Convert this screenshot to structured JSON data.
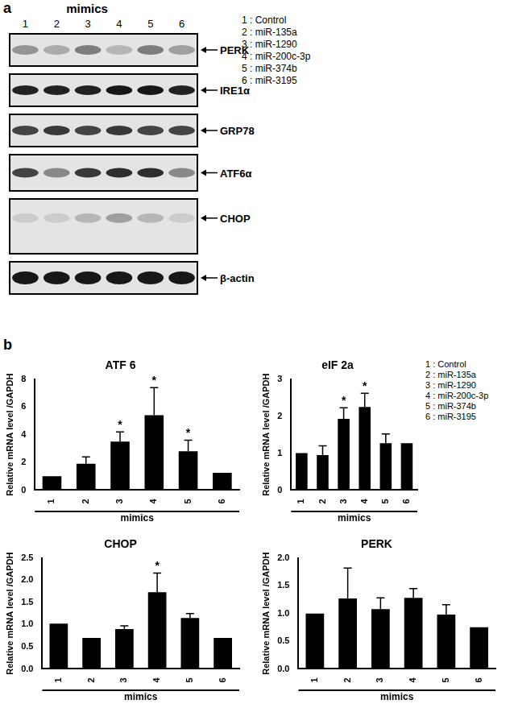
{
  "panel_a": {
    "label": "a",
    "header": "mimics",
    "lanes": [
      "1",
      "2",
      "3",
      "4",
      "5",
      "6"
    ],
    "key": [
      "1 : Control",
      "2 : miR-135a",
      "3 : miR-1290",
      "4 : miR-200c-3p",
      "5 : miR-374b",
      "6 : miR-3195"
    ],
    "rows": [
      {
        "label": "PERK",
        "intensity": [
          0.35,
          0.25,
          0.45,
          0.2,
          0.45,
          0.3
        ]
      },
      {
        "label": "IRE1α",
        "intensity": [
          0.85,
          0.85,
          0.85,
          0.9,
          0.9,
          0.85
        ]
      },
      {
        "label": "GRP78",
        "intensity": [
          0.7,
          0.75,
          0.7,
          0.75,
          0.7,
          0.7
        ]
      },
      {
        "label": "ATF6α",
        "intensity": [
          0.7,
          0.4,
          0.75,
          0.8,
          0.8,
          0.4
        ]
      },
      {
        "label": "CHOP",
        "intensity": [
          0.1,
          0.1,
          0.2,
          0.3,
          0.2,
          0.1
        ]
      },
      {
        "label": "β-actin",
        "intensity": [
          0.9,
          0.9,
          0.9,
          0.9,
          0.9,
          0.9
        ]
      }
    ]
  },
  "panel_b": {
    "label": "b",
    "key": [
      "1 : Control",
      "2 : miR-135a",
      "3 : miR-1290",
      "4 : miR-200c-3p",
      "5 : miR-374b",
      "6 : miR-3195"
    ]
  },
  "chart_data": [
    {
      "type": "bar",
      "title": "ATF 6",
      "x_label": "mimics",
      "y_label": "Relative mRNA level /GAPDH",
      "categories": [
        "1",
        "2",
        "3",
        "4",
        "5",
        "6"
      ],
      "values": [
        1.0,
        1.9,
        3.5,
        5.4,
        2.8,
        1.25
      ],
      "errors": [
        0,
        0.5,
        0.7,
        2.0,
        0.8,
        0
      ],
      "significance": [
        null,
        null,
        "*",
        "*",
        "*",
        null
      ],
      "color": "#000000",
      "ylim": [
        0,
        8
      ],
      "yticks": [
        0,
        2,
        4,
        6,
        8
      ],
      "grid": false
    },
    {
      "type": "bar",
      "title": "eIF 2a",
      "x_label": "mimics",
      "y_label": "Relative mRNA level /GAPDH",
      "categories": [
        "1",
        "2",
        "3",
        "4",
        "5",
        "6"
      ],
      "values": [
        1.0,
        0.95,
        1.93,
        2.25,
        1.27,
        1.27
      ],
      "errors": [
        0,
        0.25,
        0.3,
        0.37,
        0.25,
        0
      ],
      "significance": [
        null,
        null,
        "*",
        "*",
        null,
        null
      ],
      "color": "#000000",
      "ylim": [
        0,
        3
      ],
      "yticks": [
        0,
        1,
        2,
        3
      ],
      "grid": false
    },
    {
      "type": "bar",
      "title": "CHOP",
      "x_label": "mimics",
      "y_label": "Relative mRNA level /GAPDH",
      "categories": [
        "1",
        "2",
        "3",
        "4",
        "5",
        "6"
      ],
      "values": [
        1.02,
        0.7,
        0.9,
        1.73,
        1.15,
        0.7
      ],
      "errors": [
        0,
        0,
        0.07,
        0.43,
        0.1,
        0
      ],
      "significance": [
        null,
        null,
        null,
        "*",
        null,
        null
      ],
      "color": "#000000",
      "ylim": [
        0,
        2.5
      ],
      "yticks": [
        {
          "value": 0,
          "label": "0.0"
        },
        {
          "value": 0.5,
          "label": "0.5"
        },
        {
          "value": 1,
          "label": "1.0"
        },
        {
          "value": 1.5,
          "label": "1.5"
        },
        {
          "value": 2,
          "label": "2.0"
        },
        {
          "value": 2.5,
          "label": "2.5"
        }
      ],
      "grid": false
    },
    {
      "type": "bar",
      "title": "PERK",
      "x_label": "mimics",
      "y_label": "Relative mRNA level /GAPDH",
      "categories": [
        "1",
        "2",
        "3",
        "4",
        "5",
        "6"
      ],
      "values": [
        1.0,
        1.27,
        1.08,
        1.28,
        0.98,
        0.75
      ],
      "errors": [
        0,
        0.55,
        0.2,
        0.17,
        0.18,
        0
      ],
      "significance": [
        null,
        null,
        null,
        null,
        null,
        null
      ],
      "color": "#000000",
      "ylim": [
        0,
        2
      ],
      "yticks": [
        {
          "value": 0,
          "label": "0.0"
        },
        {
          "value": 0.5,
          "label": "0.5"
        },
        {
          "value": 1,
          "label": "1.0"
        },
        {
          "value": 1.5,
          "label": "1.5"
        },
        {
          "value": 2,
          "label": "2.0"
        }
      ],
      "grid": false
    }
  ]
}
